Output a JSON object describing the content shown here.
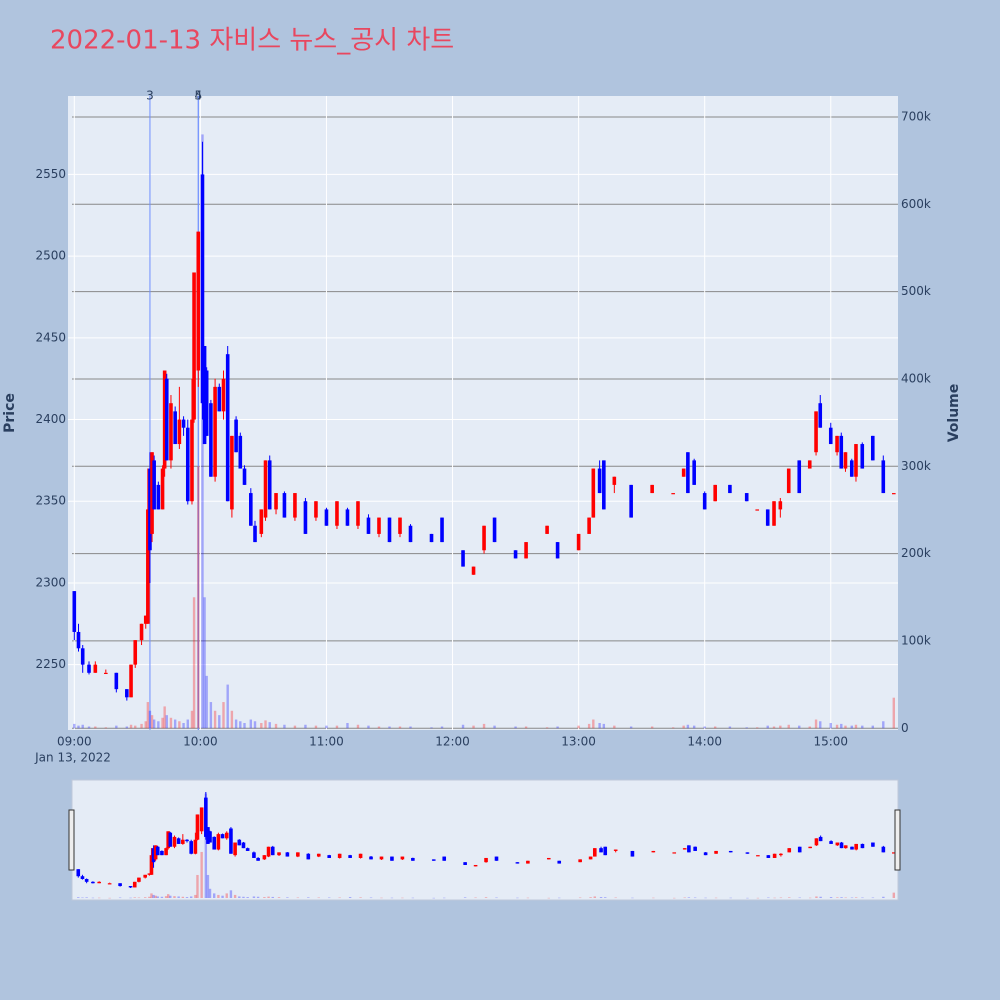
{
  "chart_data": {
    "type": "candlestick",
    "title": "2022-01-13 자비스 뉴스_공시 차트",
    "x_sublabel": "Jan 13, 2022",
    "y_label": "Price",
    "y2_label": "Volume",
    "increasing_color": "#ff0000",
    "decreasing_color": "#0000ff",
    "xlim": [
      "08:57",
      "15:32"
    ],
    "xticks": [
      "09:00",
      "10:00",
      "11:00",
      "12:00",
      "13:00",
      "14:00",
      "15:00"
    ],
    "ylim": [
      2210,
      2598
    ],
    "yticks": [
      2250,
      2300,
      2350,
      2400,
      2450,
      2500,
      2550
    ],
    "y2lim": [
      -2000,
      724000
    ],
    "y2ticks": [
      0,
      {
        "value": 100000,
        "label": "100k"
      },
      {
        "value": 200000,
        "label": "200k"
      },
      {
        "value": 300000,
        "label": "300k"
      },
      {
        "value": 400000,
        "label": "400k"
      },
      {
        "value": 500000,
        "label": "500k"
      },
      {
        "value": 600000,
        "label": "600k"
      },
      {
        "value": 700000,
        "label": "700k"
      }
    ],
    "grid": true,
    "annotations": [
      {
        "x": "09:36",
        "text": "3"
      },
      {
        "x": "09:59",
        "text": "4"
      },
      {
        "x": "09:59",
        "text": "5"
      }
    ],
    "x": [
      "09:00",
      "09:02",
      "09:04",
      "09:07",
      "09:10",
      "09:15",
      "09:20",
      "09:25",
      "09:27",
      "09:29",
      "09:32",
      "09:34",
      "09:35",
      "09:36",
      "09:37",
      "09:38",
      "09:40",
      "09:42",
      "09:43",
      "09:44",
      "09:46",
      "09:48",
      "09:50",
      "09:52",
      "09:54",
      "09:56",
      "09:57",
      "09:59",
      "10:01",
      "10:02",
      "10:03",
      "10:05",
      "10:07",
      "10:09",
      "10:11",
      "10:13",
      "10:15",
      "10:17",
      "10:19",
      "10:21",
      "10:24",
      "10:26",
      "10:29",
      "10:31",
      "10:33",
      "10:36",
      "10:40",
      "10:45",
      "10:50",
      "10:55",
      "11:00",
      "11:05",
      "11:10",
      "11:15",
      "11:20",
      "11:25",
      "11:30",
      "11:35",
      "11:40",
      "11:50",
      "11:55",
      "12:05",
      "12:10",
      "12:15",
      "12:20",
      "12:30",
      "12:35",
      "12:45",
      "12:50",
      "13:00",
      "13:05",
      "13:07",
      "13:10",
      "13:12",
      "13:17",
      "13:25",
      "13:35",
      "13:45",
      "13:50",
      "13:52",
      "13:55",
      "14:00",
      "14:05",
      "14:12",
      "14:20",
      "14:25",
      "14:30",
      "14:33",
      "14:36",
      "14:40",
      "14:45",
      "14:50",
      "14:53",
      "14:55",
      "15:00",
      "15:03",
      "15:05",
      "15:07",
      "15:10",
      "15:12",
      "15:15",
      "15:20",
      "15:25",
      "15:30"
    ],
    "open": [
      2295,
      2270,
      2260,
      2250,
      2245,
      2245,
      2245,
      2235,
      2230,
      2250,
      2265,
      2275,
      2275,
      2370,
      2330,
      2375,
      2360,
      2345,
      2370,
      2425,
      2375,
      2405,
      2385,
      2400,
      2395,
      2350,
      2400,
      2430,
      2550,
      2445,
      2430,
      2410,
      2365,
      2420,
      2405,
      2440,
      2345,
      2400,
      2390,
      2370,
      2355,
      2335,
      2330,
      2340,
      2375,
      2345,
      2355,
      2340,
      2350,
      2340,
      2345,
      2335,
      2345,
      2335,
      2340,
      2330,
      2340,
      2330,
      2335,
      2330,
      2340,
      2320,
      2305,
      2320,
      2340,
      2320,
      2315,
      2330,
      2325,
      2320,
      2330,
      2340,
      2370,
      2375,
      2360,
      2360,
      2355,
      2355,
      2365,
      2380,
      2375,
      2355,
      2350,
      2360,
      2355,
      2345,
      2345,
      2335,
      2345,
      2355,
      2375,
      2370,
      2380,
      2410,
      2395,
      2380,
      2390,
      2370,
      2375,
      2365,
      2385,
      2390,
      2375,
      2355
    ],
    "high": [
      2295,
      2275,
      2262,
      2252,
      2252,
      2247,
      2245,
      2235,
      2250,
      2265,
      2275,
      2280,
      2370,
      2380,
      2380,
      2378,
      2362,
      2372,
      2430,
      2428,
      2415,
      2408,
      2420,
      2402,
      2400,
      2425,
      2490,
      2515,
      2570,
      2445,
      2432,
      2412,
      2425,
      2422,
      2430,
      2445,
      2390,
      2402,
      2392,
      2372,
      2358,
      2338,
      2345,
      2375,
      2378,
      2355,
      2356,
      2355,
      2352,
      2350,
      2346,
      2350,
      2346,
      2350,
      2342,
      2340,
      2340,
      2340,
      2336,
      2330,
      2340,
      2320,
      2310,
      2335,
      2340,
      2320,
      2325,
      2335,
      2325,
      2330,
      2340,
      2370,
      2375,
      2375,
      2365,
      2360,
      2360,
      2355,
      2370,
      2380,
      2376,
      2356,
      2360,
      2360,
      2355,
      2345,
      2345,
      2350,
      2352,
      2370,
      2375,
      2375,
      2405,
      2415,
      2398,
      2390,
      2392,
      2380,
      2376,
      2385,
      2386,
      2390,
      2378,
      2355
    ],
    "low": [
      2265,
      2258,
      2245,
      2244,
      2245,
      2245,
      2233,
      2228,
      2230,
      2248,
      2262,
      2272,
      2275,
      2300,
      2325,
      2345,
      2345,
      2345,
      2365,
      2375,
      2370,
      2385,
      2382,
      2390,
      2348,
      2348,
      2398,
      2420,
      2400,
      2385,
      2390,
      2365,
      2362,
      2405,
      2400,
      2350,
      2340,
      2380,
      2370,
      2360,
      2335,
      2325,
      2328,
      2338,
      2345,
      2342,
      2340,
      2338,
      2330,
      2338,
      2335,
      2333,
      2335,
      2333,
      2330,
      2328,
      2325,
      2328,
      2325,
      2325,
      2325,
      2310,
      2305,
      2318,
      2325,
      2315,
      2315,
      2330,
      2315,
      2320,
      2330,
      2340,
      2355,
      2345,
      2355,
      2340,
      2355,
      2355,
      2365,
      2355,
      2360,
      2345,
      2350,
      2355,
      2350,
      2345,
      2335,
      2335,
      2340,
      2355,
      2355,
      2370,
      2378,
      2395,
      2385,
      2378,
      2370,
      2368,
      2365,
      2362,
      2370,
      2375,
      2355,
      2355
    ],
    "close": [
      2270,
      2260,
      2250,
      2245,
      2250,
      2245,
      2235,
      2230,
      2250,
      2265,
      2275,
      2280,
      2345,
      2320,
      2380,
      2345,
      2345,
      2370,
      2430,
      2375,
      2410,
      2385,
      2400,
      2395,
      2350,
      2400,
      2490,
      2515,
      2410,
      2385,
      2390,
      2365,
      2420,
      2405,
      2425,
      2350,
      2390,
      2380,
      2370,
      2360,
      2335,
      2325,
      2345,
      2375,
      2345,
      2355,
      2340,
      2355,
      2330,
      2350,
      2335,
      2350,
      2335,
      2350,
      2330,
      2340,
      2325,
      2340,
      2325,
      2325,
      2325,
      2310,
      2310,
      2335,
      2325,
      2315,
      2325,
      2335,
      2315,
      2330,
      2340,
      2370,
      2355,
      2345,
      2365,
      2340,
      2360,
      2355,
      2370,
      2355,
      2360,
      2345,
      2360,
      2355,
      2350,
      2345,
      2335,
      2350,
      2350,
      2370,
      2355,
      2375,
      2405,
      2395,
      2385,
      2390,
      2370,
      2380,
      2365,
      2385,
      2370,
      2375,
      2355,
      2355
    ],
    "volume": [
      5000,
      3000,
      4000,
      2000,
      2000,
      1000,
      3000,
      2000,
      4000,
      3000,
      5000,
      8000,
      30000,
      20000,
      15000,
      10000,
      8000,
      12000,
      25000,
      15000,
      12000,
      10000,
      8000,
      6000,
      10000,
      20000,
      150000,
      300000,
      680000,
      150000,
      60000,
      30000,
      20000,
      15000,
      30000,
      50000,
      20000,
      10000,
      8000,
      6000,
      10000,
      8000,
      6000,
      9000,
      7000,
      5000,
      4000,
      3000,
      4000,
      3000,
      3000,
      3000,
      6000,
      4000,
      3000,
      2000,
      2000,
      2000,
      2000,
      1000,
      2000,
      4000,
      3000,
      5000,
      3000,
      2000,
      2000,
      1000,
      2000,
      3000,
      5000,
      10000,
      6000,
      5000,
      3000,
      2000,
      2000,
      1000,
      3000,
      4000,
      3000,
      2000,
      2000,
      2000,
      1000,
      1000,
      3000,
      2000,
      3000,
      4000,
      3000,
      2000,
      10000,
      8000,
      6000,
      4000,
      5000,
      3000,
      3000,
      4000,
      3000,
      3000,
      8000,
      35000
    ]
  }
}
